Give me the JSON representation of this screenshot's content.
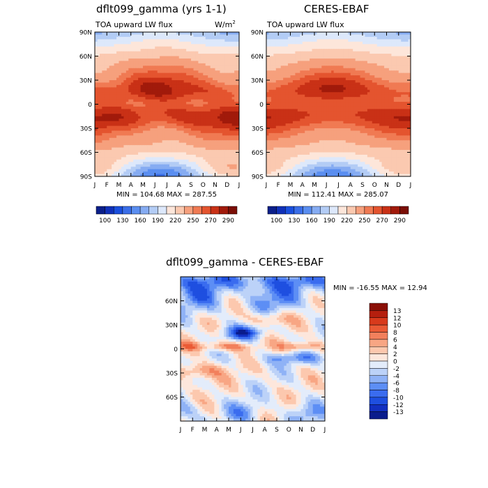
{
  "chart_data": [
    {
      "type": "heatmap",
      "id": "model",
      "title": "dflt099_gamma (yrs 1-1)",
      "subtitle": "TOA upward LW flux",
      "units_label": "W/m",
      "units_exp": "2",
      "x_ticks": [
        "J",
        "F",
        "M",
        "A",
        "M",
        "J",
        "J",
        "A",
        "S",
        "O",
        "N",
        "D",
        "J"
      ],
      "y_ticks": [
        "90N",
        "60N",
        "30N",
        "0",
        "30S",
        "60S",
        "90S"
      ],
      "ylim": [
        -90,
        90
      ],
      "stats": "MIN = 104.68 MAX = 287.55",
      "colorbar_labels": [
        "100",
        "130",
        "160",
        "190",
        "220",
        "250",
        "270",
        "290"
      ],
      "colorbar_levels": [
        100,
        115,
        130,
        145,
        160,
        175,
        190,
        205,
        220,
        235,
        250,
        260,
        270,
        280,
        290
      ],
      "colorbar_colors": [
        "#0b1f8a",
        "#1030b8",
        "#1a4fdd",
        "#3a6ee8",
        "#5a8ef0",
        "#86acf2",
        "#b3ccf5",
        "#dde8fb",
        "#fde6da",
        "#fbc9b0",
        "#f6a07d",
        "#f07a53",
        "#e4542f",
        "#c93116",
        "#a11a0b",
        "#7a0e06"
      ]
    },
    {
      "type": "heatmap",
      "id": "obs",
      "title": "CERES-EBAF",
      "subtitle": "TOA upward LW flux",
      "x_ticks": [
        "J",
        "F",
        "M",
        "A",
        "M",
        "J",
        "J",
        "A",
        "S",
        "O",
        "N",
        "D",
        "J"
      ],
      "y_ticks": [
        "90N",
        "60N",
        "30N",
        "0",
        "30S",
        "60S",
        "90S"
      ],
      "ylim": [
        -90,
        90
      ],
      "stats": "MIN = 112.41 MAX = 285.07",
      "colorbar_labels": [
        "100",
        "130",
        "160",
        "190",
        "220",
        "250",
        "270",
        "290"
      ]
    },
    {
      "type": "heatmap",
      "id": "diff",
      "title": "dflt099_gamma - CERES-EBAF",
      "x_ticks": [
        "J",
        "F",
        "M",
        "A",
        "M",
        "J",
        "J",
        "A",
        "S",
        "O",
        "N",
        "D",
        "J"
      ],
      "y_ticks": [
        "60N",
        "30N",
        "0",
        "30S",
        "60S"
      ],
      "ylim": [
        -90,
        90
      ],
      "stats": "MIN = -16.55 MAX =  12.94",
      "colorbar_labels": [
        "13",
        "12",
        "10",
        "8",
        "6",
        "4",
        "2",
        "0",
        "-2",
        "-4",
        "-6",
        "-8",
        "-10",
        "-12",
        "-13"
      ],
      "colorbar_levels": [
        -13,
        -12,
        -10,
        -8,
        -6,
        -4,
        -2,
        0,
        2,
        4,
        6,
        8,
        10,
        12,
        13
      ],
      "colorbar_colors": [
        "#0a1c8c",
        "#1230c0",
        "#1e4fe0",
        "#3a6cef",
        "#5d8ef5",
        "#8fb2f6",
        "#bcd2f8",
        "#e3ecfb",
        "#fde7dc",
        "#fcc8ae",
        "#f8a684",
        "#f2805c",
        "#ea5a35",
        "#d83a1c",
        "#b51f0e",
        "#8a0f07"
      ]
    }
  ]
}
